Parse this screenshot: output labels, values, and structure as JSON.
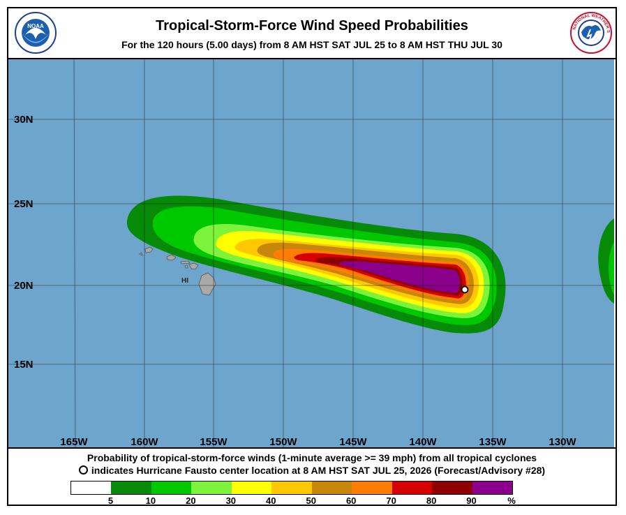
{
  "header": {
    "title": "Tropical-Storm-Force Wind Speed Probabilities",
    "subtitle": "For the 120 hours (5.00 days) from 8 AM HST SAT JUL 25 to 8 AM HST THU JUL 30",
    "left_logo": {
      "icon": "noaa-logo-icon",
      "text": "NOAA"
    },
    "right_logo": {
      "icon": "nws-logo-icon",
      "text": "NATIONAL WEATHER SERVICE"
    }
  },
  "map": {
    "lat_labels": [
      "30N",
      "25N",
      "20N",
      "15N"
    ],
    "lon_labels": [
      "165W",
      "160W",
      "155W",
      "150W",
      "145W",
      "140W",
      "135W",
      "130W"
    ],
    "island_label": "HI",
    "ocean_color": "#6ea5cd",
    "land_color": "#a9a9a9",
    "storm_center": {
      "lon": -137.0,
      "lat": 19.2
    }
  },
  "footer": {
    "caption_line1": "Probability of tropical-storm-force winds (1-minute average >= 39 mph) from all tropical cyclones",
    "caption_line2": "indicates Hurricane Fausto center location at 8 AM HST SAT JUL 25, 2026 (Forecast/Advisory #28)",
    "legend": {
      "colors": [
        "#ffffff",
        "#078a07",
        "#00c800",
        "#7df43b",
        "#ffff00",
        "#ffc800",
        "#c8860a",
        "#ff7d00",
        "#d70000",
        "#8c0000",
        "#8a008a"
      ],
      "ticks": [
        "5",
        "10",
        "20",
        "30",
        "40",
        "50",
        "60",
        "70",
        "80",
        "90",
        "%"
      ]
    }
  }
}
